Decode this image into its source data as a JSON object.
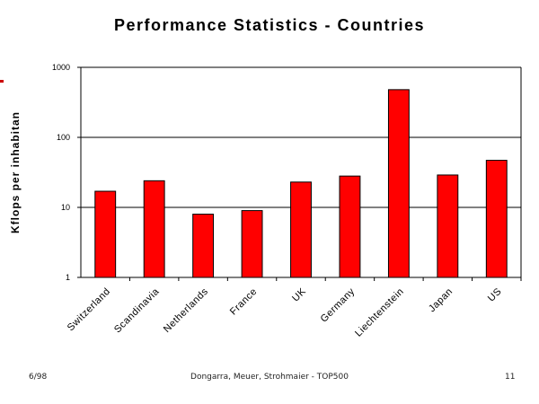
{
  "chart_data": {
    "type": "bar",
    "title": "Performance Statistics - Countries",
    "ylabel": "Kflops per inhabitan",
    "xlabel": "",
    "yscale": "log",
    "ylim": [
      1,
      1000
    ],
    "yticks": [
      "1",
      "10",
      "100",
      "1000"
    ],
    "grid": "horizontal",
    "categories": [
      "Switzerland",
      "Scandinavia",
      "Netherlands",
      "France",
      "UK",
      "Germany",
      "Liechtenstein",
      "Japan",
      "US"
    ],
    "values": [
      17,
      24,
      8,
      9,
      23,
      28,
      480,
      29,
      47
    ],
    "bar_color": "#ff0000"
  },
  "footer": {
    "left": "6/98",
    "center": "Dongarra, Meuer, Strohmaier - TOP500",
    "right": "11"
  },
  "accent_color": "#cc0000"
}
